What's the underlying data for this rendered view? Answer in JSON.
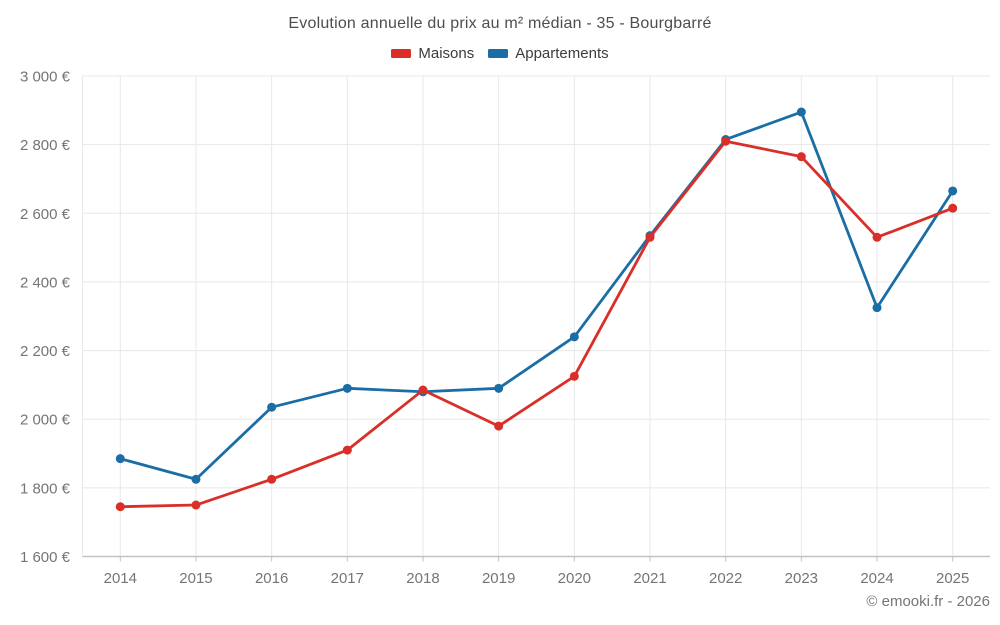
{
  "title": "Evolution annuelle du prix au m² médian - 35 - Bourgbarré",
  "attribution": "© emooki.fr - 2026",
  "colors": {
    "maisons": "#d92f28",
    "appartements": "#1b6ea5",
    "grid": "#e8e8e8",
    "axis": "#c2c2c2",
    "tick_text": "#757575",
    "title_text": "#4d4d4d"
  },
  "chart_data": {
    "type": "line",
    "title": "Evolution annuelle du prix au m² médian - 35 - Bourgbarré",
    "x": [
      2014,
      2015,
      2016,
      2017,
      2018,
      2019,
      2020,
      2021,
      2022,
      2023,
      2024,
      2025
    ],
    "x_tick_labels": [
      "2014",
      "2015",
      "2016",
      "2017",
      "2018",
      "2019",
      "2020",
      "2021",
      "2022",
      "2023",
      "2024",
      "2025"
    ],
    "series": [
      {
        "name": "Maisons",
        "color": "#d92f28",
        "values": [
          1745,
          1750,
          1825,
          1910,
          2085,
          1980,
          2125,
          2530,
          2810,
          2765,
          2530,
          2615
        ]
      },
      {
        "name": "Appartements",
        "color": "#1b6ea5",
        "values": [
          1885,
          1825,
          2035,
          2090,
          2080,
          2090,
          2240,
          2535,
          2815,
          2895,
          2325,
          2665
        ]
      }
    ],
    "ylim": [
      1600,
      3000
    ],
    "y_ticks": [
      {
        "value": 1600,
        "label": "1 600 €"
      },
      {
        "value": 1800,
        "label": "1 800 €"
      },
      {
        "value": 2000,
        "label": "2 000 €"
      },
      {
        "value": 2200,
        "label": "2 200 €"
      },
      {
        "value": 2400,
        "label": "2 400 €"
      },
      {
        "value": 2600,
        "label": "2 600 €"
      },
      {
        "value": 2800,
        "label": "2 800 €"
      },
      {
        "value": 3000,
        "label": "3 000 €"
      }
    ],
    "grid": true,
    "legend_position": "top",
    "xlabel": "",
    "ylabel": ""
  }
}
